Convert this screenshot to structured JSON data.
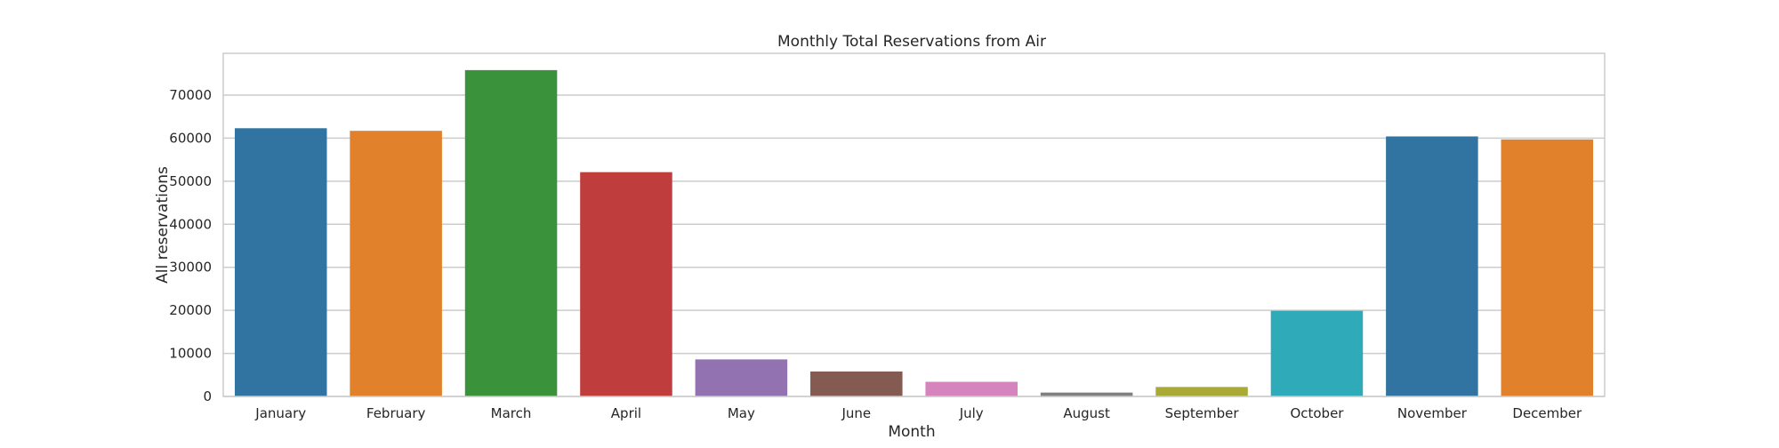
{
  "chart_data": {
    "type": "bar",
    "title": "Monthly Total Reservations from Air",
    "xlabel": "Month",
    "ylabel": "All reservations",
    "categories": [
      "January",
      "February",
      "March",
      "April",
      "May",
      "June",
      "July",
      "August",
      "September",
      "October",
      "November",
      "December"
    ],
    "values": [
      62300,
      61700,
      75800,
      52100,
      8600,
      5800,
      3400,
      900,
      2200,
      19900,
      60400,
      59700
    ],
    "colors": [
      "#3274a1",
      "#e1812c",
      "#3a923a",
      "#c03d3e",
      "#9372b2",
      "#845b53",
      "#d684bd",
      "#7f7f7f",
      "#a9aa35",
      "#2eaab9",
      "#3274a1",
      "#e1812c"
    ],
    "ylim": [
      0,
      79700
    ],
    "yticks": [
      0,
      10000,
      20000,
      30000,
      40000,
      50000,
      60000,
      70000
    ],
    "ytick_labels": [
      "0",
      "10000",
      "20000",
      "30000",
      "40000",
      "50000",
      "60000",
      "70000"
    ],
    "grid": true,
    "legend": "none",
    "grid_color": "#cccccc",
    "frame_color": "#cccccc"
  }
}
